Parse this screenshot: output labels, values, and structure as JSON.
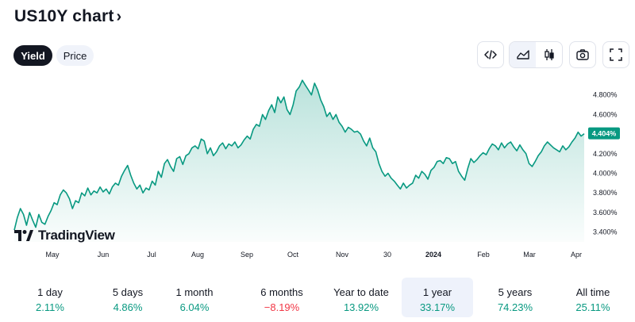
{
  "header": {
    "title": "US10Y chart",
    "title_chevron": "›"
  },
  "toggle": {
    "yield_label": "Yield",
    "price_label": "Price"
  },
  "toolbar": {
    "embed_icon": "code-icon",
    "area_icon": "area-chart-icon",
    "candle_icon": "candlestick-icon",
    "snapshot_icon": "camera-icon",
    "fullscreen_icon": "fullscreen-icon"
  },
  "brand": {
    "name": "TradingView"
  },
  "colors": {
    "line": "#089981",
    "fill": "#089981",
    "positive": "#089981",
    "negative": "#f23645",
    "price_badge": "#089981"
  },
  "chart_data": {
    "type": "area",
    "title": "",
    "xlabel": "",
    "ylabel": "",
    "ylim": [
      3.3,
      5.0
    ],
    "yticks": [
      "4.800%",
      "4.600%",
      "4.400%",
      "4.200%",
      "4.000%",
      "3.800%",
      "3.600%",
      "3.400%"
    ],
    "ytick_values": [
      4.8,
      4.6,
      4.4,
      4.2,
      4.0,
      3.8,
      3.6,
      3.4
    ],
    "xticks": [
      {
        "label": "May",
        "bold": false
      },
      {
        "label": "Jun",
        "bold": false
      },
      {
        "label": "Jul",
        "bold": false
      },
      {
        "label": "Aug",
        "bold": false
      },
      {
        "label": "Sep",
        "bold": false
      },
      {
        "label": "Oct",
        "bold": false
      },
      {
        "label": "Nov",
        "bold": false
      },
      {
        "label": "30",
        "bold": false
      },
      {
        "label": "2024",
        "bold": true
      },
      {
        "label": "Feb",
        "bold": false
      },
      {
        "label": "Mar",
        "bold": false
      },
      {
        "label": "Apr",
        "bold": false
      }
    ],
    "last_value_label": "4.404%",
    "series": [
      {
        "values": [
          3.42,
          3.55,
          3.64,
          3.58,
          3.47,
          3.6,
          3.52,
          3.45,
          3.58,
          3.5,
          3.48,
          3.56,
          3.62,
          3.7,
          3.68,
          3.78,
          3.83,
          3.8,
          3.74,
          3.64,
          3.72,
          3.7,
          3.8,
          3.77,
          3.85,
          3.78,
          3.82,
          3.8,
          3.86,
          3.81,
          3.84,
          3.79,
          3.86,
          3.9,
          3.88,
          3.97,
          4.03,
          4.08,
          3.98,
          3.9,
          3.84,
          3.88,
          3.8,
          3.85,
          3.83,
          3.92,
          3.88,
          4.02,
          3.96,
          4.1,
          4.14,
          4.07,
          4.02,
          4.15,
          4.17,
          4.09,
          4.18,
          4.2,
          4.26,
          4.28,
          4.25,
          4.35,
          4.33,
          4.2,
          4.26,
          4.18,
          4.22,
          4.28,
          4.31,
          4.25,
          4.3,
          4.28,
          4.32,
          4.26,
          4.29,
          4.34,
          4.38,
          4.35,
          4.45,
          4.5,
          4.48,
          4.6,
          4.55,
          4.64,
          4.7,
          4.62,
          4.78,
          4.72,
          4.78,
          4.65,
          4.6,
          4.7,
          4.84,
          4.88,
          4.95,
          4.9,
          4.85,
          4.8,
          4.92,
          4.85,
          4.75,
          4.68,
          4.58,
          4.62,
          4.55,
          4.6,
          4.52,
          4.48,
          4.42,
          4.47,
          4.45,
          4.42,
          4.43,
          4.4,
          4.33,
          4.28,
          4.36,
          4.26,
          4.22,
          4.1,
          4.02,
          3.97,
          4.0,
          3.95,
          3.92,
          3.88,
          3.84,
          3.9,
          3.85,
          3.88,
          3.9,
          3.98,
          3.95,
          4.02,
          3.99,
          3.94,
          4.03,
          4.06,
          4.12,
          4.13,
          4.1,
          4.16,
          4.15,
          4.1,
          4.12,
          4.02,
          3.97,
          3.93,
          4.05,
          4.15,
          4.11,
          4.14,
          4.18,
          4.21,
          4.19,
          4.25,
          4.3,
          4.28,
          4.24,
          4.31,
          4.26,
          4.3,
          4.32,
          4.27,
          4.23,
          4.29,
          4.24,
          4.2,
          4.1,
          4.07,
          4.12,
          4.18,
          4.22,
          4.28,
          4.32,
          4.29,
          4.26,
          4.24,
          4.22,
          4.28,
          4.24,
          4.27,
          4.32,
          4.36,
          4.42,
          4.38,
          4.404
        ]
      }
    ]
  },
  "periods": [
    {
      "label": "1 day",
      "value": "2.11%",
      "sign": "pos",
      "selected": false
    },
    {
      "label": "5 days",
      "value": "4.86%",
      "sign": "pos",
      "selected": false
    },
    {
      "label": "1 month",
      "value": "6.04%",
      "sign": "pos",
      "selected": false
    },
    {
      "label": "6 months",
      "value": "−8.19%",
      "sign": "neg",
      "selected": false
    },
    {
      "label": "Year to date",
      "value": "13.92%",
      "sign": "pos",
      "selected": false
    },
    {
      "label": "1 year",
      "value": "33.17%",
      "sign": "pos",
      "selected": true
    },
    {
      "label": "5 years",
      "value": "74.23%",
      "sign": "pos",
      "selected": false
    },
    {
      "label": "All time",
      "value": "25.11%",
      "sign": "pos",
      "selected": false
    }
  ]
}
